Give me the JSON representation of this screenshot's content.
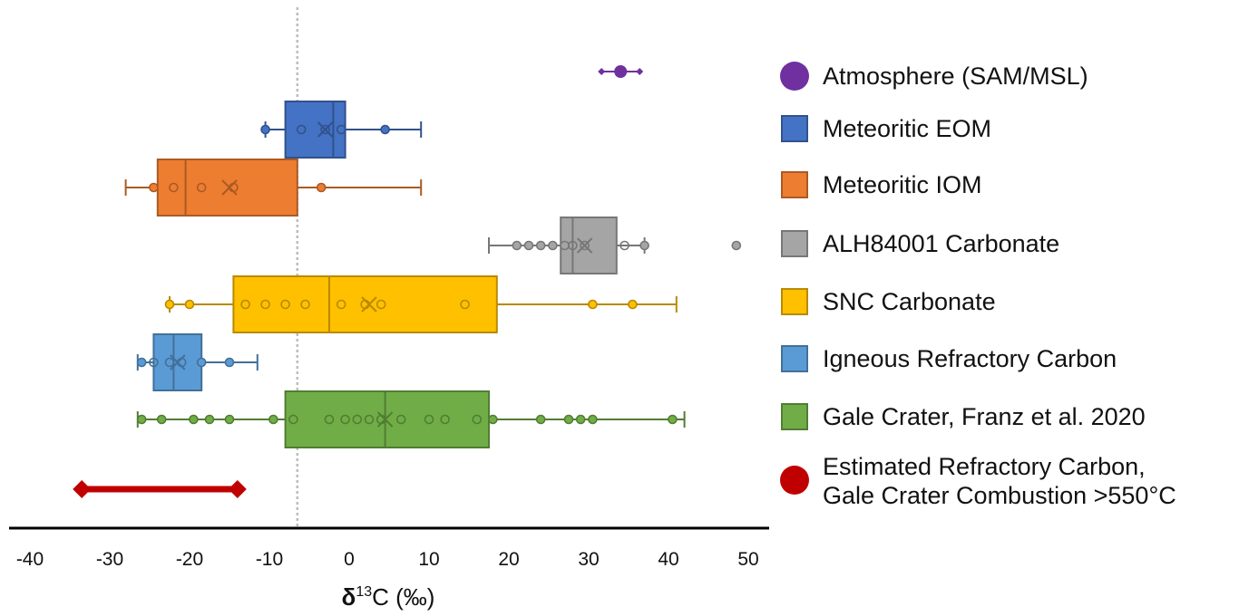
{
  "chart_data": {
    "type": "box",
    "xlabel": {
      "delta": "δ",
      "sup": "13",
      "rest": "C (‰)"
    },
    "xlim": [
      -40,
      50
    ],
    "x_ticks": [
      "-40",
      "-30",
      "-20",
      "-10",
      "0",
      "10",
      "20",
      "30",
      "40",
      "50"
    ],
    "reference_line": {
      "x": -6.5,
      "style": "dotted",
      "color": "#bdbdbd"
    },
    "series": [
      {
        "name": "Atmosphere (SAM/MSL)",
        "color": "#7030a0",
        "marker": "circle",
        "kind": "point_range",
        "value": 34,
        "range": [
          31.5,
          36.5
        ]
      },
      {
        "name": "Meteoritic EOM",
        "color": "#4472c4",
        "marker": "square",
        "kind": "box",
        "whisker_low": -10.5,
        "q1": -8,
        "median": -2,
        "q3": -0.5,
        "whisker_high": 9,
        "mean": -3,
        "points": [
          -10.5,
          -6,
          -3,
          -1,
          4.5
        ],
        "filled_points": [
          -10.5,
          4.5
        ]
      },
      {
        "name": "Meteoritic IOM",
        "color": "#ed7d31",
        "marker": "square",
        "kind": "box",
        "whisker_low": -28,
        "q1": -24,
        "median": -20.5,
        "q3": -6.5,
        "whisker_high": 9,
        "mean": -15,
        "points": [
          -24.5,
          -22,
          -18.5,
          -14.5,
          -3.5
        ],
        "filled_points": [
          -24.5,
          -3.5
        ]
      },
      {
        "name": "ALH84001  Carbonate",
        "color": "#a5a5a5",
        "marker": "square",
        "kind": "box",
        "whisker_low": 17.5,
        "q1": 26.5,
        "median": 28,
        "q3": 33.5,
        "whisker_high": 37,
        "mean": 29.5,
        "points": [
          21,
          22.5,
          24,
          25.5,
          27,
          28,
          29.5,
          34.5,
          37,
          48.5
        ],
        "filled_points": [
          21,
          22.5,
          24,
          25.5,
          27,
          37,
          48.5
        ]
      },
      {
        "name": "SNC Carbonate",
        "color": "#ffc000",
        "marker": "square",
        "kind": "box",
        "whisker_low": -22.5,
        "q1": -14.5,
        "median": -2.5,
        "q3": 18.5,
        "whisker_high": 41,
        "mean": 2.5,
        "points": [
          -22.5,
          -20,
          -13,
          -10.5,
          -8,
          -5.5,
          -1,
          2,
          4,
          14.5,
          30.5,
          35.5
        ],
        "filled_points": [
          -22.5,
          -20,
          30.5,
          35.5
        ]
      },
      {
        "name": "Igneous Refractory Carbon",
        "color": "#5b9bd5",
        "marker": "square",
        "kind": "box",
        "whisker_low": -26.5,
        "q1": -24.5,
        "median": -22,
        "q3": -18.5,
        "whisker_high": -11.5,
        "mean": -21.5,
        "points": [
          -26,
          -24.5,
          -22.5,
          -21,
          -18.5,
          -15
        ],
        "filled_points": [
          -26,
          -18.5,
          -15
        ]
      },
      {
        "name": "Gale Crater, Franz et al. 2020",
        "color": "#70ad47",
        "marker": "square",
        "kind": "box",
        "whisker_low": -26.5,
        "q1": -8,
        "median": 4.5,
        "q3": 17.5,
        "whisker_high": 42,
        "mean": 4.5,
        "points": [
          -26,
          -23.5,
          -19.5,
          -17.5,
          -15,
          -9.5,
          -7,
          -2.5,
          -0.5,
          1,
          2.5,
          4,
          6.5,
          10,
          12,
          16,
          18,
          24,
          27.5,
          29,
          30.5,
          40.5
        ],
        "filled_points": [
          -26,
          -23.5,
          -19.5,
          -17.5,
          -15,
          -9.5,
          18,
          24,
          27.5,
          29,
          30.5,
          40.5
        ]
      },
      {
        "name": "Estimated Refractory Carbon,\nGale Crater Combustion >550°C",
        "color": "#c00000",
        "marker": "circle",
        "kind": "range_bar",
        "range": [
          -33.5,
          -14
        ]
      }
    ]
  }
}
